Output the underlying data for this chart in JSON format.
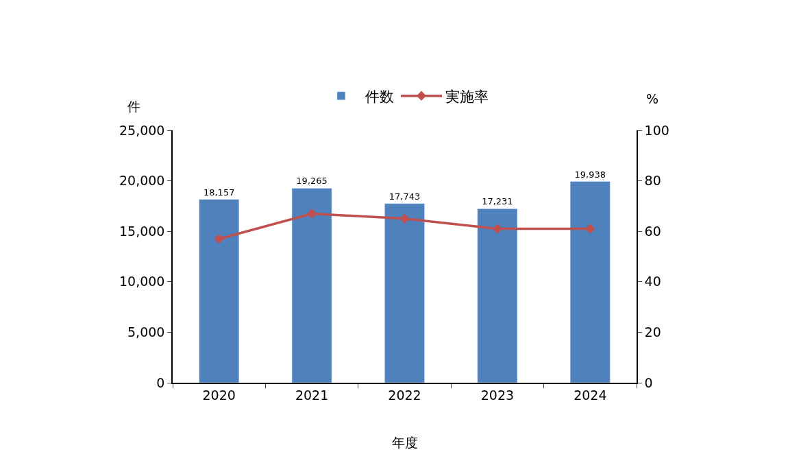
{
  "chart_data": {
    "type": "bar",
    "categories": [
      "2020",
      "2021",
      "2022",
      "2023",
      "2024"
    ],
    "xlabel": "年度",
    "ylabel": "件",
    "y2label": "%",
    "series": [
      {
        "name": "件数",
        "color": "#4f81bd",
        "values": [
          18157,
          19265,
          17743,
          17231,
          19938
        ],
        "value_labels": [
          "18,157",
          "19,265",
          "17,743",
          "17,231",
          "19,938"
        ]
      },
      {
        "name": "実施率",
        "type": "line",
        "axis": "y2",
        "color": "#c0504d",
        "marker": "diamond",
        "line_style": "solid",
        "values": [
          57,
          67,
          65,
          61,
          61
        ]
      }
    ],
    "ylim": [
      0,
      25000
    ],
    "yticks": [
      {
        "value": 0,
        "label": "0"
      },
      {
        "value": 5000,
        "label": "5,000"
      },
      {
        "value": 10000,
        "label": "10,000"
      },
      {
        "value": 15000,
        "label": "15,000"
      },
      {
        "value": 20000,
        "label": "20,000"
      },
      {
        "value": 25000,
        "label": "25,000"
      }
    ],
    "y2lim": [
      0,
      100
    ],
    "y2ticks": [
      0,
      20,
      40,
      60,
      80,
      100
    ],
    "legend": "top"
  }
}
